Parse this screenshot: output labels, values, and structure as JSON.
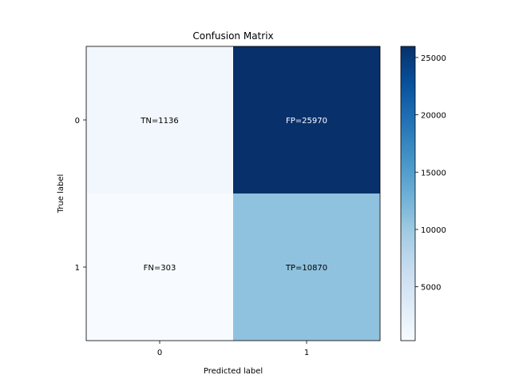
{
  "chart_data": {
    "type": "heatmap",
    "title": "Confusion Matrix",
    "xlabel": "Predicted label",
    "ylabel": "True label",
    "x_categories": [
      "0",
      "1"
    ],
    "y_categories": [
      "0",
      "1"
    ],
    "values": [
      [
        1136,
        25970
      ],
      [
        303,
        10870
      ]
    ],
    "cell_labels": [
      [
        "TN=1136",
        "FP=25970"
      ],
      [
        "FN=303",
        "TP=10870"
      ]
    ],
    "colormap": "Blues",
    "color_range": [
      303,
      25970
    ],
    "colorbar_ticks": [
      5000,
      10000,
      15000,
      20000,
      25000
    ],
    "colorbar_tick_labels": [
      "5000",
      "10000",
      "15000",
      "20000",
      "25000"
    ]
  },
  "colors": {
    "blues_low": "#f7fbff",
    "blues_high": "#08306b",
    "text_dark": "#000000",
    "text_light": "#ffffff"
  }
}
